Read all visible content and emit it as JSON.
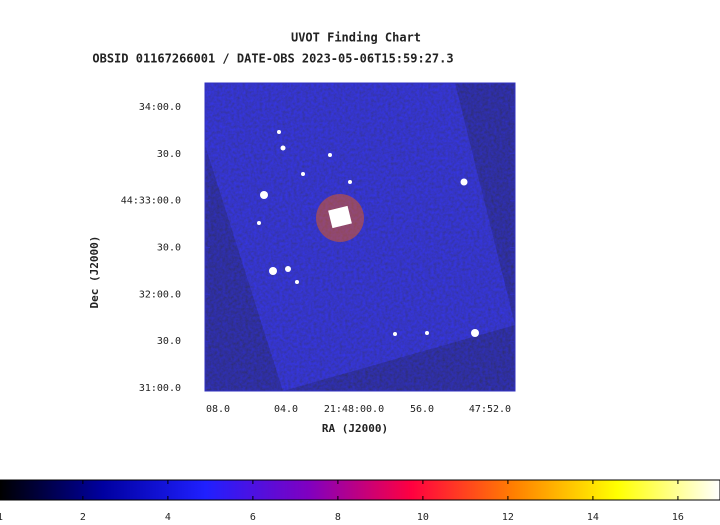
{
  "chart_data": {
    "type": "image",
    "title": "UVOT Finding Chart",
    "subtitle": "OBSID 01167266001 / DATE-OBS 2023-05-06T15:59:27.3",
    "x_label": "RA (J2000)",
    "y_label": "Dec (J2000)",
    "xlim": [
      327.03652,
      326.96054
    ],
    "xticks": [
      {
        "value": 327.03333,
        "label": "08.0"
      },
      {
        "value": 327.01667,
        "label": "04.0"
      },
      {
        "value": 327.0,
        "label": "21:48:00.0"
      },
      {
        "value": 326.98333,
        "label": "56.0"
      },
      {
        "value": 326.96667,
        "label": "47:52.0"
      }
    ],
    "ylim": [
      44.51614,
      44.57092
    ],
    "yticks": [
      {
        "value": 44.56667,
        "label": "34:00.0"
      },
      {
        "value": 44.55833,
        "label": "30.0"
      },
      {
        "value": 44.55,
        "label": "44:33:00.0"
      },
      {
        "value": 44.54167,
        "label": "30.0"
      },
      {
        "value": 44.53333,
        "label": "32:00.0"
      },
      {
        "value": 44.525,
        "label": "30.0"
      },
      {
        "value": 44.51667,
        "label": "31:00.0"
      }
    ],
    "colorbar": {
      "clim": [
        0.05,
        16.99
      ],
      "ticks": [
        2,
        4,
        6,
        8,
        10,
        12,
        14,
        16
      ],
      "edge_label": "1",
      "colors": [
        "#000000",
        "#0000a0",
        "#2020ff",
        "#8000c0",
        "#ff0040",
        "#ff8000",
        "#ffff00",
        "#ffffff"
      ]
    }
  }
}
